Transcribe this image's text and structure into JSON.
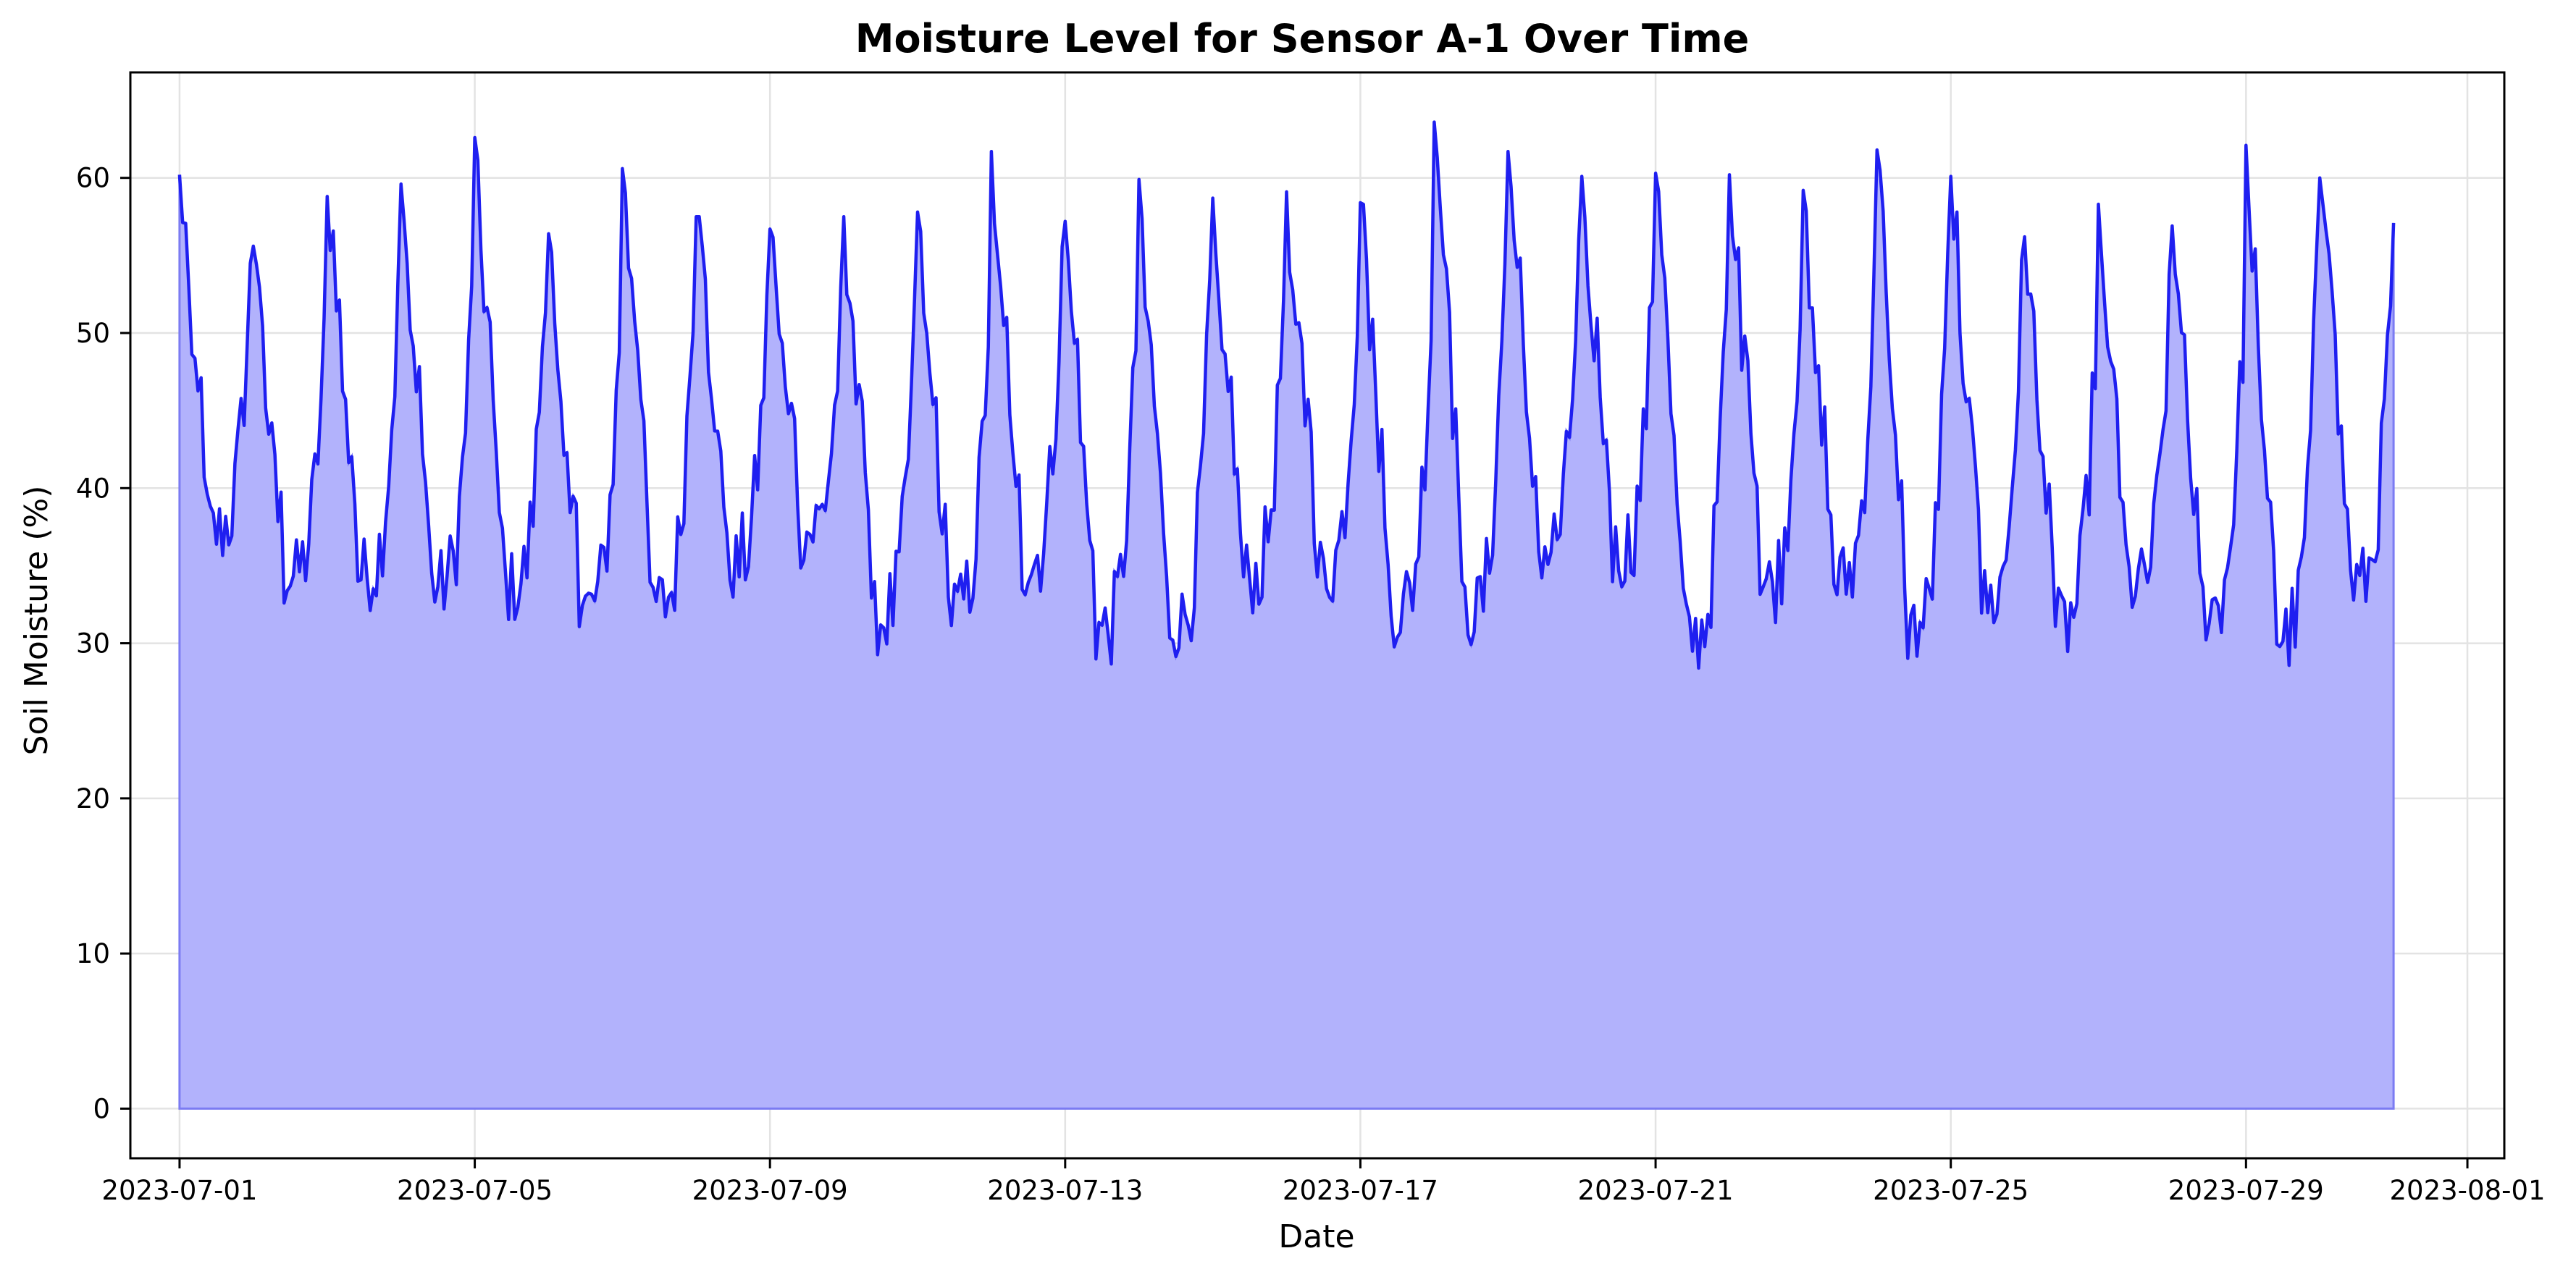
{
  "chart_data": {
    "type": "area",
    "title": "Moisture Level for Sensor A-1 Over Time",
    "xlabel": "Date",
    "ylabel": "Soil Moisture (%)",
    "xlim": [
      "2023-06-30T08:00",
      "2023-08-01T12:00"
    ],
    "ylim": [
      -3.2,
      66.8
    ],
    "x_ticks": [
      "2023-07-01",
      "2023-07-05",
      "2023-07-09",
      "2023-07-13",
      "2023-07-17",
      "2023-07-21",
      "2023-07-25",
      "2023-07-29",
      "2023-08-01"
    ],
    "y_ticks": [
      0,
      10,
      20,
      30,
      40,
      50,
      60
    ],
    "grid": true,
    "colors": {
      "line": "#1f1ff0",
      "fill": "#b2b2fc"
    },
    "series": [
      {
        "x_start": "2023-07-01T00:00",
        "x_end": "2023-07-31T00:00",
        "daily_peaks": [
          {
            "date": "2023-07-01",
            "value": 60.2
          },
          {
            "date": "2023-07-02",
            "value": 55.6
          },
          {
            "date": "2023-07-03",
            "value": 58.8
          },
          {
            "date": "2023-07-04",
            "value": 59.6
          },
          {
            "date": "2023-07-05",
            "value": 62.6
          },
          {
            "date": "2023-07-06",
            "value": 56.4
          },
          {
            "date": "2023-07-07",
            "value": 60.6
          },
          {
            "date": "2023-07-08",
            "value": 57.5
          },
          {
            "date": "2023-07-09",
            "value": 56.7
          },
          {
            "date": "2023-07-10",
            "value": 57.5
          },
          {
            "date": "2023-07-11",
            "value": 57.8
          },
          {
            "date": "2023-07-12",
            "value": 61.7
          },
          {
            "date": "2023-07-13",
            "value": 57.2
          },
          {
            "date": "2023-07-14",
            "value": 59.9
          },
          {
            "date": "2023-07-15",
            "value": 58.7
          },
          {
            "date": "2023-07-16",
            "value": 59.1
          },
          {
            "date": "2023-07-17",
            "value": 58.4
          },
          {
            "date": "2023-07-18",
            "value": 63.6
          },
          {
            "date": "2023-07-19",
            "value": 61.7
          },
          {
            "date": "2023-07-20",
            "value": 60.1
          },
          {
            "date": "2023-07-21",
            "value": 60.3
          },
          {
            "date": "2023-07-22",
            "value": 60.2
          },
          {
            "date": "2023-07-23",
            "value": 59.2
          },
          {
            "date": "2023-07-24",
            "value": 61.8
          },
          {
            "date": "2023-07-25",
            "value": 60.1
          },
          {
            "date": "2023-07-26",
            "value": 56.2
          },
          {
            "date": "2023-07-27",
            "value": 58.3
          },
          {
            "date": "2023-07-28",
            "value": 56.9
          },
          {
            "date": "2023-07-29",
            "value": 62.1
          },
          {
            "date": "2023-07-30",
            "value": 60.0
          }
        ],
        "daily_troughs": [
          {
            "date": "2023-07-01",
            "value": 30.7
          },
          {
            "date": "2023-07-02",
            "value": 27.8
          },
          {
            "date": "2023-07-03",
            "value": 28.0
          },
          {
            "date": "2023-07-04",
            "value": 27.2
          },
          {
            "date": "2023-07-05",
            "value": 27.1
          },
          {
            "date": "2023-07-06",
            "value": 25.8
          },
          {
            "date": "2023-07-07",
            "value": 26.1
          },
          {
            "date": "2023-07-08",
            "value": 28.5
          },
          {
            "date": "2023-07-09",
            "value": 30.7
          },
          {
            "date": "2023-07-10",
            "value": 25.1
          },
          {
            "date": "2023-07-11",
            "value": 25.7
          },
          {
            "date": "2023-07-12",
            "value": 28.7
          },
          {
            "date": "2023-07-13",
            "value": 24.4
          },
          {
            "date": "2023-07-14",
            "value": 24.9
          },
          {
            "date": "2023-07-15",
            "value": 27.8
          },
          {
            "date": "2023-07-16",
            "value": 28.2
          },
          {
            "date": "2023-07-17",
            "value": 25.7
          },
          {
            "date": "2023-07-18",
            "value": 25.6
          },
          {
            "date": "2023-07-19",
            "value": 29.5
          },
          {
            "date": "2023-07-20",
            "value": 29.3
          },
          {
            "date": "2023-07-21",
            "value": 23.9
          },
          {
            "date": "2023-07-22",
            "value": 27.3
          },
          {
            "date": "2023-07-23",
            "value": 27.6
          },
          {
            "date": "2023-07-24",
            "value": 24.5
          },
          {
            "date": "2023-07-25",
            "value": 26.2
          },
          {
            "date": "2023-07-26",
            "value": 24.6
          },
          {
            "date": "2023-07-27",
            "value": 27.3
          },
          {
            "date": "2023-07-28",
            "value": 25.9
          },
          {
            "date": "2023-07-29",
            "value": 24.0
          },
          {
            "date": "2023-07-30",
            "value": 27.4
          }
        ],
        "end_value": 57.1
      }
    ]
  }
}
